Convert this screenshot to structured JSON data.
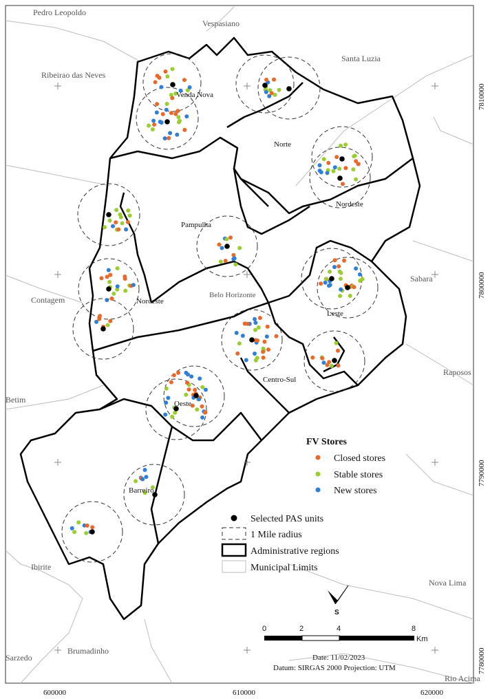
{
  "municipalities": [
    {
      "id": "pedro-leopoldo",
      "label": "Pedro Leopoldo"
    },
    {
      "id": "vespasiano",
      "label": "Vespasiano"
    },
    {
      "id": "santa-luzia",
      "label": "Santa Luzia"
    },
    {
      "id": "ribeirao-das-neves",
      "label": "Ribeirao das Neves"
    },
    {
      "id": "contagem",
      "label": "Contagem"
    },
    {
      "id": "sabara",
      "label": "Sabara"
    },
    {
      "id": "raposos",
      "label": "Raposos"
    },
    {
      "id": "betim",
      "label": "Betim"
    },
    {
      "id": "ibirite",
      "label": "Ibirite"
    },
    {
      "id": "nova-lima",
      "label": "Nova Lima"
    },
    {
      "id": "brumadinho",
      "label": "Brumadinho"
    },
    {
      "id": "sarzedo",
      "label": "Sarzedo"
    },
    {
      "id": "rio-acima",
      "label": "Rio Acima"
    },
    {
      "id": "belo-horizonte",
      "label": "Belo Horizonte"
    }
  ],
  "regions": [
    {
      "id": "venda-nova",
      "label": "Venda Nova"
    },
    {
      "id": "norte",
      "label": "Norte"
    },
    {
      "id": "nordeste",
      "label": "Nordeste"
    },
    {
      "id": "pampulha",
      "label": "Pampulha"
    },
    {
      "id": "noroeste",
      "label": "Noroeste"
    },
    {
      "id": "leste",
      "label": "Leste"
    },
    {
      "id": "centro-sul",
      "label": "Centro-Sul"
    },
    {
      "id": "oeste",
      "label": "Oeste"
    },
    {
      "id": "barreiro",
      "label": "Barreiro"
    }
  ],
  "coordinates": {
    "northing": [
      "7810000",
      "7800000",
      "7790000",
      "7780000"
    ],
    "easting": [
      "600000",
      "610000",
      "620000"
    ]
  },
  "legend": {
    "title": "FV Stores",
    "closed": "Closed stores",
    "stable": "Stable stores",
    "new": "New stores",
    "pas": "Selected PAS units",
    "radius": "1 Mile radius",
    "admin": "Administrative regions",
    "municipal": "Municipal Limits"
  },
  "colors": {
    "closed": "#e8692a",
    "stable": "#9acd32",
    "new": "#2f7fd6",
    "pas": "#000000"
  },
  "scale": {
    "ticks": [
      "0",
      "2",
      "4",
      "8"
    ],
    "unit": "Km"
  },
  "north_arrow": {
    "label": "S"
  },
  "info": {
    "date": "Date: 11/02/2023",
    "datum": "Datum: SIRGAS 2000 Projection: UTM"
  }
}
